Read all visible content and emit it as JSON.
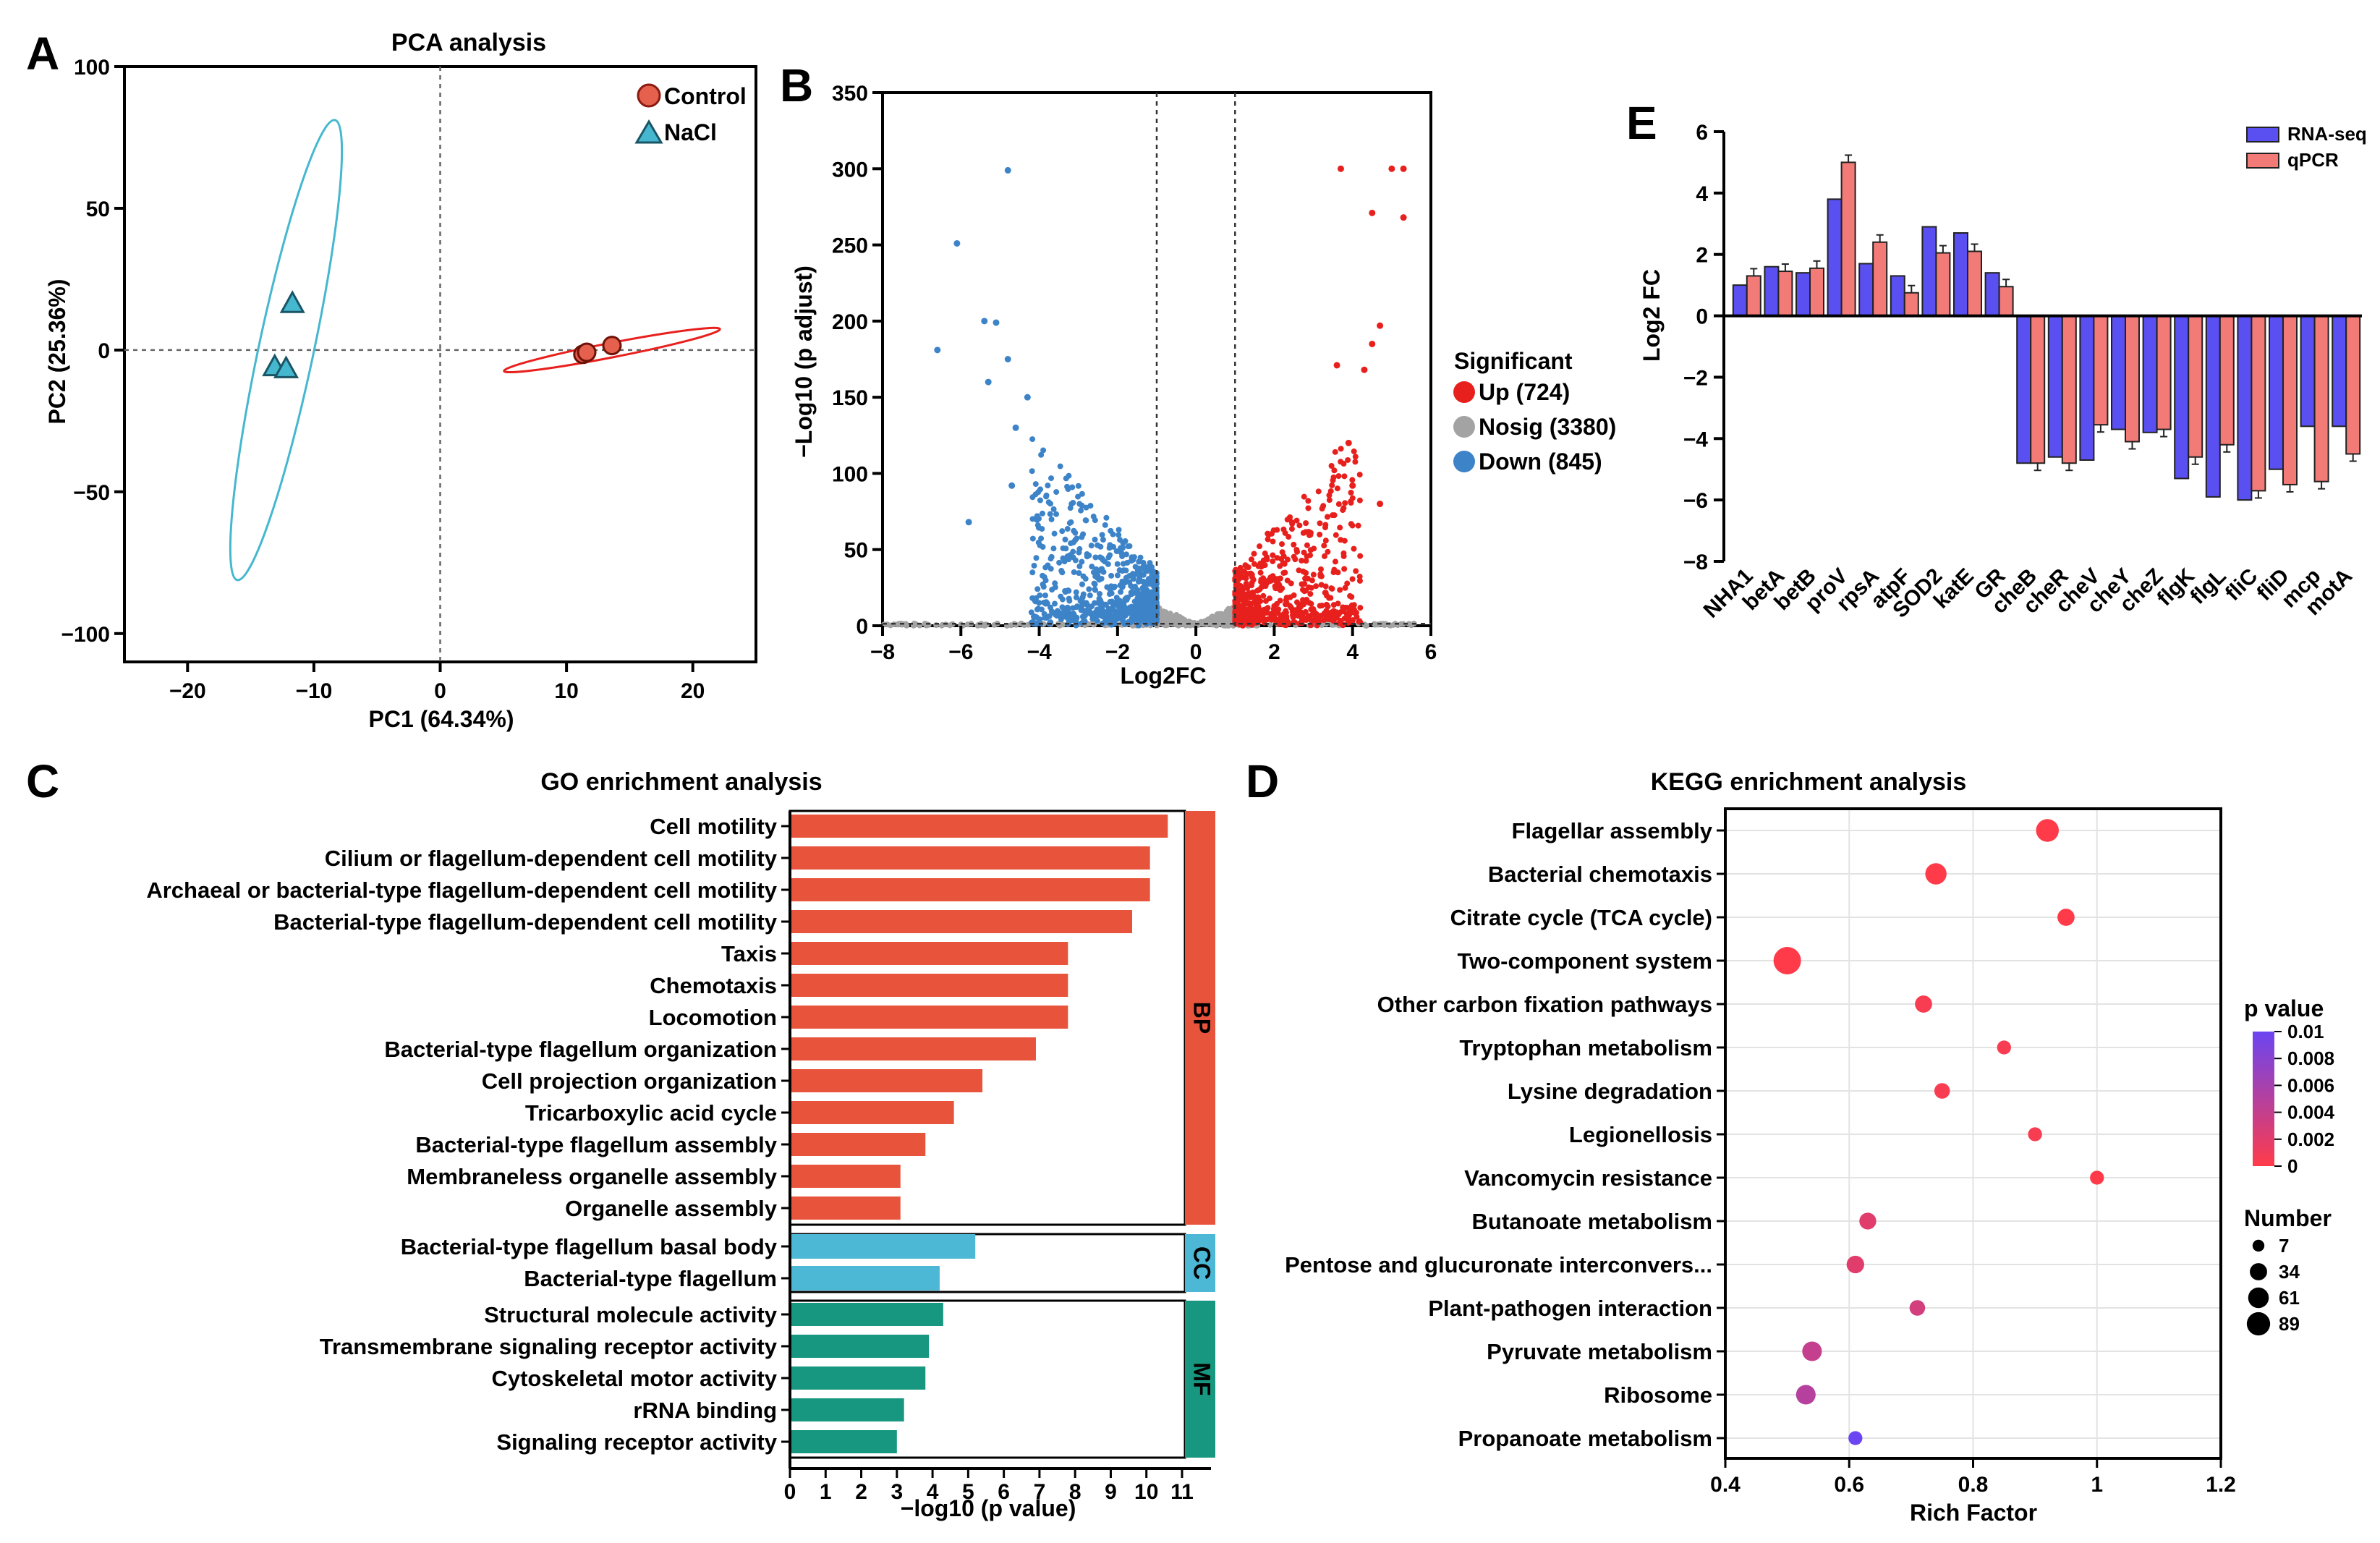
{
  "colors": {
    "control": "#e5604d",
    "nacl": "#45b7cf",
    "up": "#e8201d",
    "nosig": "#a3a3a3",
    "down": "#3d83c8",
    "bp": "#e8533b",
    "cc": "#4cb8d6",
    "mf": "#17977f",
    "rnaseq": "#5a4ff0",
    "qpcr": "#f27b78",
    "pv_high": "#6b45f2",
    "pv_low": "#ff3b4a"
  },
  "panels": {
    "a": "A",
    "b": "B",
    "c": "C",
    "d": "D",
    "e": "E"
  },
  "chart_data": [
    {
      "type": "scatter",
      "id": "pca",
      "title": "PCA analysis",
      "xlabel": "PC1 (64.34%)",
      "ylabel": "PC2 (25.36%)",
      "xlim": [
        -25,
        25
      ],
      "ylim": [
        -110,
        100
      ],
      "xticks": [
        "−20",
        "−10",
        "0",
        "10",
        "20"
      ],
      "xtick_values": [
        -20,
        -10,
        0,
        10,
        20
      ],
      "yticks": [
        "100",
        "50",
        "0",
        "−50",
        "−100"
      ],
      "ytick_values": [
        100,
        50,
        0,
        -50,
        -100
      ],
      "series": [
        {
          "name": "Control",
          "points": [
            [
              11.3,
              -1.5
            ],
            [
              11.6,
              -0.8
            ],
            [
              13.6,
              1.6
            ]
          ]
        },
        {
          "name": "NaCl",
          "points": [
            [
              -11.7,
              16.5
            ],
            [
              -13.1,
              -5.8
            ],
            [
              -12.2,
              -6.5
            ]
          ]
        }
      ]
    },
    {
      "type": "scatter",
      "id": "volcano",
      "xlabel": "Log2FC",
      "ylabel": "−Log10 (p adjust)",
      "xlim": [
        -8,
        6
      ],
      "ylim": [
        0,
        350
      ],
      "xticks": [
        "−8",
        "−6",
        "−4",
        "−2",
        "0",
        "2",
        "4",
        "6"
      ],
      "xtick_values": [
        -8,
        -6,
        -4,
        -2,
        0,
        2,
        4,
        6
      ],
      "yticks": [
        "0",
        "50",
        "100",
        "150",
        "200",
        "250",
        "300",
        "350"
      ],
      "ytick_values": [
        0,
        50,
        100,
        150,
        200,
        250,
        300,
        350
      ],
      "thresholds": [
        -1,
        1
      ],
      "legend_title": "Significant",
      "series": [
        {
          "name": "Up (724)",
          "key": "up"
        },
        {
          "name": "Nosig (3380)",
          "key": "nosig"
        },
        {
          "name": "Down (845)",
          "key": "down"
        }
      ],
      "highlights": {
        "down": [
          [
            -4.8,
            299
          ],
          [
            -6.1,
            251
          ],
          [
            -5.4,
            200
          ],
          [
            -5.1,
            199
          ],
          [
            -6.6,
            181
          ],
          [
            -4.8,
            175
          ],
          [
            -5.3,
            160
          ],
          [
            -4.3,
            150
          ],
          [
            -4.6,
            130
          ],
          [
            -4.7,
            92
          ],
          [
            -5.8,
            68
          ]
        ],
        "up": [
          [
            3.7,
            300
          ],
          [
            5.0,
            300
          ],
          [
            5.3,
            300
          ],
          [
            4.5,
            271
          ],
          [
            5.3,
            268
          ],
          [
            4.7,
            197
          ],
          [
            4.5,
            185
          ],
          [
            3.6,
            171
          ],
          [
            4.3,
            168
          ],
          [
            3.9,
            120
          ],
          [
            4.7,
            80
          ],
          [
            4.0,
            92
          ]
        ]
      }
    },
    {
      "type": "bar",
      "id": "go",
      "orientation": "horizontal",
      "title": "GO enrichment analysis",
      "xlabel": "−log10 (p value)",
      "xlim": [
        0,
        11
      ],
      "xticks": [
        "0",
        "1",
        "2",
        "3",
        "4",
        "5",
        "6",
        "7",
        "8",
        "9",
        "10",
        "11"
      ],
      "groups": [
        {
          "name": "BP",
          "key": "bp",
          "categories": [
            "Cell motility",
            "Cilium or flagellum-dependent cell motility",
            "Archaeal or bacterial-type flagellum-dependent cell motility",
            "Bacterial-type flagellum-dependent cell motility",
            "Taxis",
            "Chemotaxis",
            "Locomotion",
            "Bacterial-type flagellum organization",
            "Cell projection organization",
            "Tricarboxylic acid cycle",
            "Bacterial-type flagellum assembly",
            "Membraneless organelle assembly",
            "Organelle assembly"
          ],
          "values": [
            10.6,
            10.1,
            10.1,
            9.6,
            7.8,
            7.8,
            7.8,
            6.9,
            5.4,
            4.6,
            3.8,
            3.1,
            3.1
          ]
        },
        {
          "name": "CC",
          "key": "cc",
          "categories": [
            "Bacterial-type flagellum basal body",
            "Bacterial-type flagellum"
          ],
          "values": [
            5.2,
            4.2
          ]
        },
        {
          "name": "MF",
          "key": "mf",
          "categories": [
            "Structural molecule activity",
            "Transmembrane signaling receptor activity",
            "Cytoskeletal motor activity",
            "rRNA binding",
            "Signaling receptor activity"
          ],
          "values": [
            4.3,
            3.9,
            3.8,
            3.2,
            3.0
          ]
        }
      ]
    },
    {
      "type": "scatter",
      "id": "kegg",
      "title": "KEGG enrichment analysis",
      "xlabel": "Rich Factor",
      "xlim": [
        0.4,
        1.2
      ],
      "xticks": [
        "0.4",
        "0.6",
        "0.8",
        "1",
        "1.2"
      ],
      "xtick_values": [
        0.4,
        0.6,
        0.8,
        1.0,
        1.2
      ],
      "categories": [
        "Flagellar assembly",
        "Bacterial chemotaxis",
        "Citrate cycle (TCA cycle)",
        "Two-component system",
        "Other carbon fixation pathways",
        "Tryptophan metabolism",
        "Lysine degradation",
        "Legionellosis",
        "Vancomycin resistance",
        "Butanoate metabolism",
        "Pentose and glucuronate interconvers...",
        "Plant-pathogen interaction",
        "Pyruvate metabolism",
        "Ribosome",
        "Propanoate metabolism"
      ],
      "rich_factor": [
        0.92,
        0.74,
        0.95,
        0.5,
        0.72,
        0.85,
        0.75,
        0.9,
        1.0,
        0.63,
        0.61,
        0.71,
        0.54,
        0.53,
        0.61
      ],
      "number": [
        50,
        40,
        18,
        89,
        18,
        7,
        12,
        7,
        7,
        17,
        20,
        12,
        30,
        30,
        7
      ],
      "p_value": [
        0.0,
        0.0,
        0.0,
        0.0,
        0.0005,
        0.0005,
        0.0005,
        0.0005,
        0.0,
        0.002,
        0.002,
        0.003,
        0.004,
        0.005,
        0.01
      ],
      "colorbar_title": "p value",
      "colorbar_ticks": [
        "0.01",
        "0.008",
        "0.006",
        "0.004",
        "0.002",
        "0"
      ],
      "size_legend_title": "Number",
      "size_legend": [
        "7",
        "34",
        "61",
        "89"
      ],
      "size_legend_values": [
        7,
        34,
        61,
        89
      ]
    },
    {
      "type": "bar",
      "id": "qpcr",
      "ylabel": "Log2 FC",
      "ylim": [
        -8,
        6
      ],
      "yticks": [
        "6",
        "4",
        "2",
        "0",
        "−2",
        "−4",
        "−6",
        "−8"
      ],
      "ytick_values": [
        6,
        4,
        2,
        0,
        -2,
        -4,
        -6,
        -8
      ],
      "categories": [
        "NHA1",
        "betA",
        "betB",
        "proV",
        "rpsA",
        "atpF",
        "SOD2",
        "katE",
        "GR",
        "cheB",
        "cheR",
        "cheV",
        "cheY",
        "cheZ",
        "flgK",
        "flgL",
        "fliC",
        "fliD",
        "mcp",
        "motA"
      ],
      "series": [
        {
          "name": "RNA-seq",
          "values": [
            1.0,
            1.6,
            1.4,
            3.8,
            1.7,
            1.3,
            2.9,
            2.7,
            1.4,
            -4.8,
            -4.6,
            -4.7,
            -3.7,
            -3.8,
            -5.3,
            -5.9,
            -6.0,
            -5.0,
            -3.6,
            -3.6
          ]
        },
        {
          "name": "qPCR",
          "values": [
            1.3,
            1.45,
            1.55,
            5.0,
            2.4,
            0.75,
            2.05,
            2.1,
            0.95,
            -4.8,
            -4.8,
            -3.55,
            -4.1,
            -3.7,
            -4.6,
            -4.2,
            -5.7,
            -5.5,
            -5.4,
            -4.5
          ]
        }
      ]
    }
  ]
}
